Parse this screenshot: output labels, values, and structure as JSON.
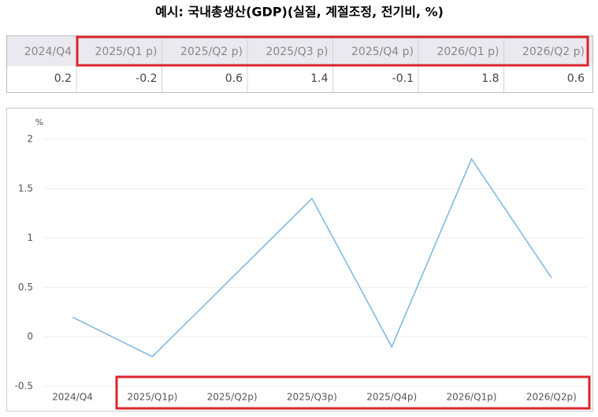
{
  "title": "예시: 국내총생산(GDP)(실질, 계절조정, 전기비, %)",
  "table": {
    "header": [
      "2024/Q4",
      "2025/Q1 p)",
      "2025/Q2 p)",
      "2025/Q3 p)",
      "2025/Q4 p)",
      "2026/Q1 p)",
      "2026/Q2 p)"
    ],
    "values": [
      0.2,
      -0.2,
      0.6,
      1.4,
      -0.1,
      1.8,
      0.6
    ]
  },
  "chart_data": {
    "type": "line",
    "y_label": "%",
    "categories": [
      "2024/Q4",
      "2025/Q1p)",
      "2025/Q2p)",
      "2025/Q3p)",
      "2025/Q4p)",
      "2026/Q1p)",
      "2026/Q2p)"
    ],
    "series": [
      {
        "name": "GDP",
        "color": "#7cb5e0",
        "values": [
          0.2,
          -0.2,
          0.6,
          1.4,
          -0.1,
          1.8,
          0.6
        ]
      }
    ],
    "ylim": [
      -0.5,
      2
    ],
    "yticks": [
      -0.5,
      0,
      0.5,
      1,
      1.5,
      2
    ],
    "grid": true
  }
}
